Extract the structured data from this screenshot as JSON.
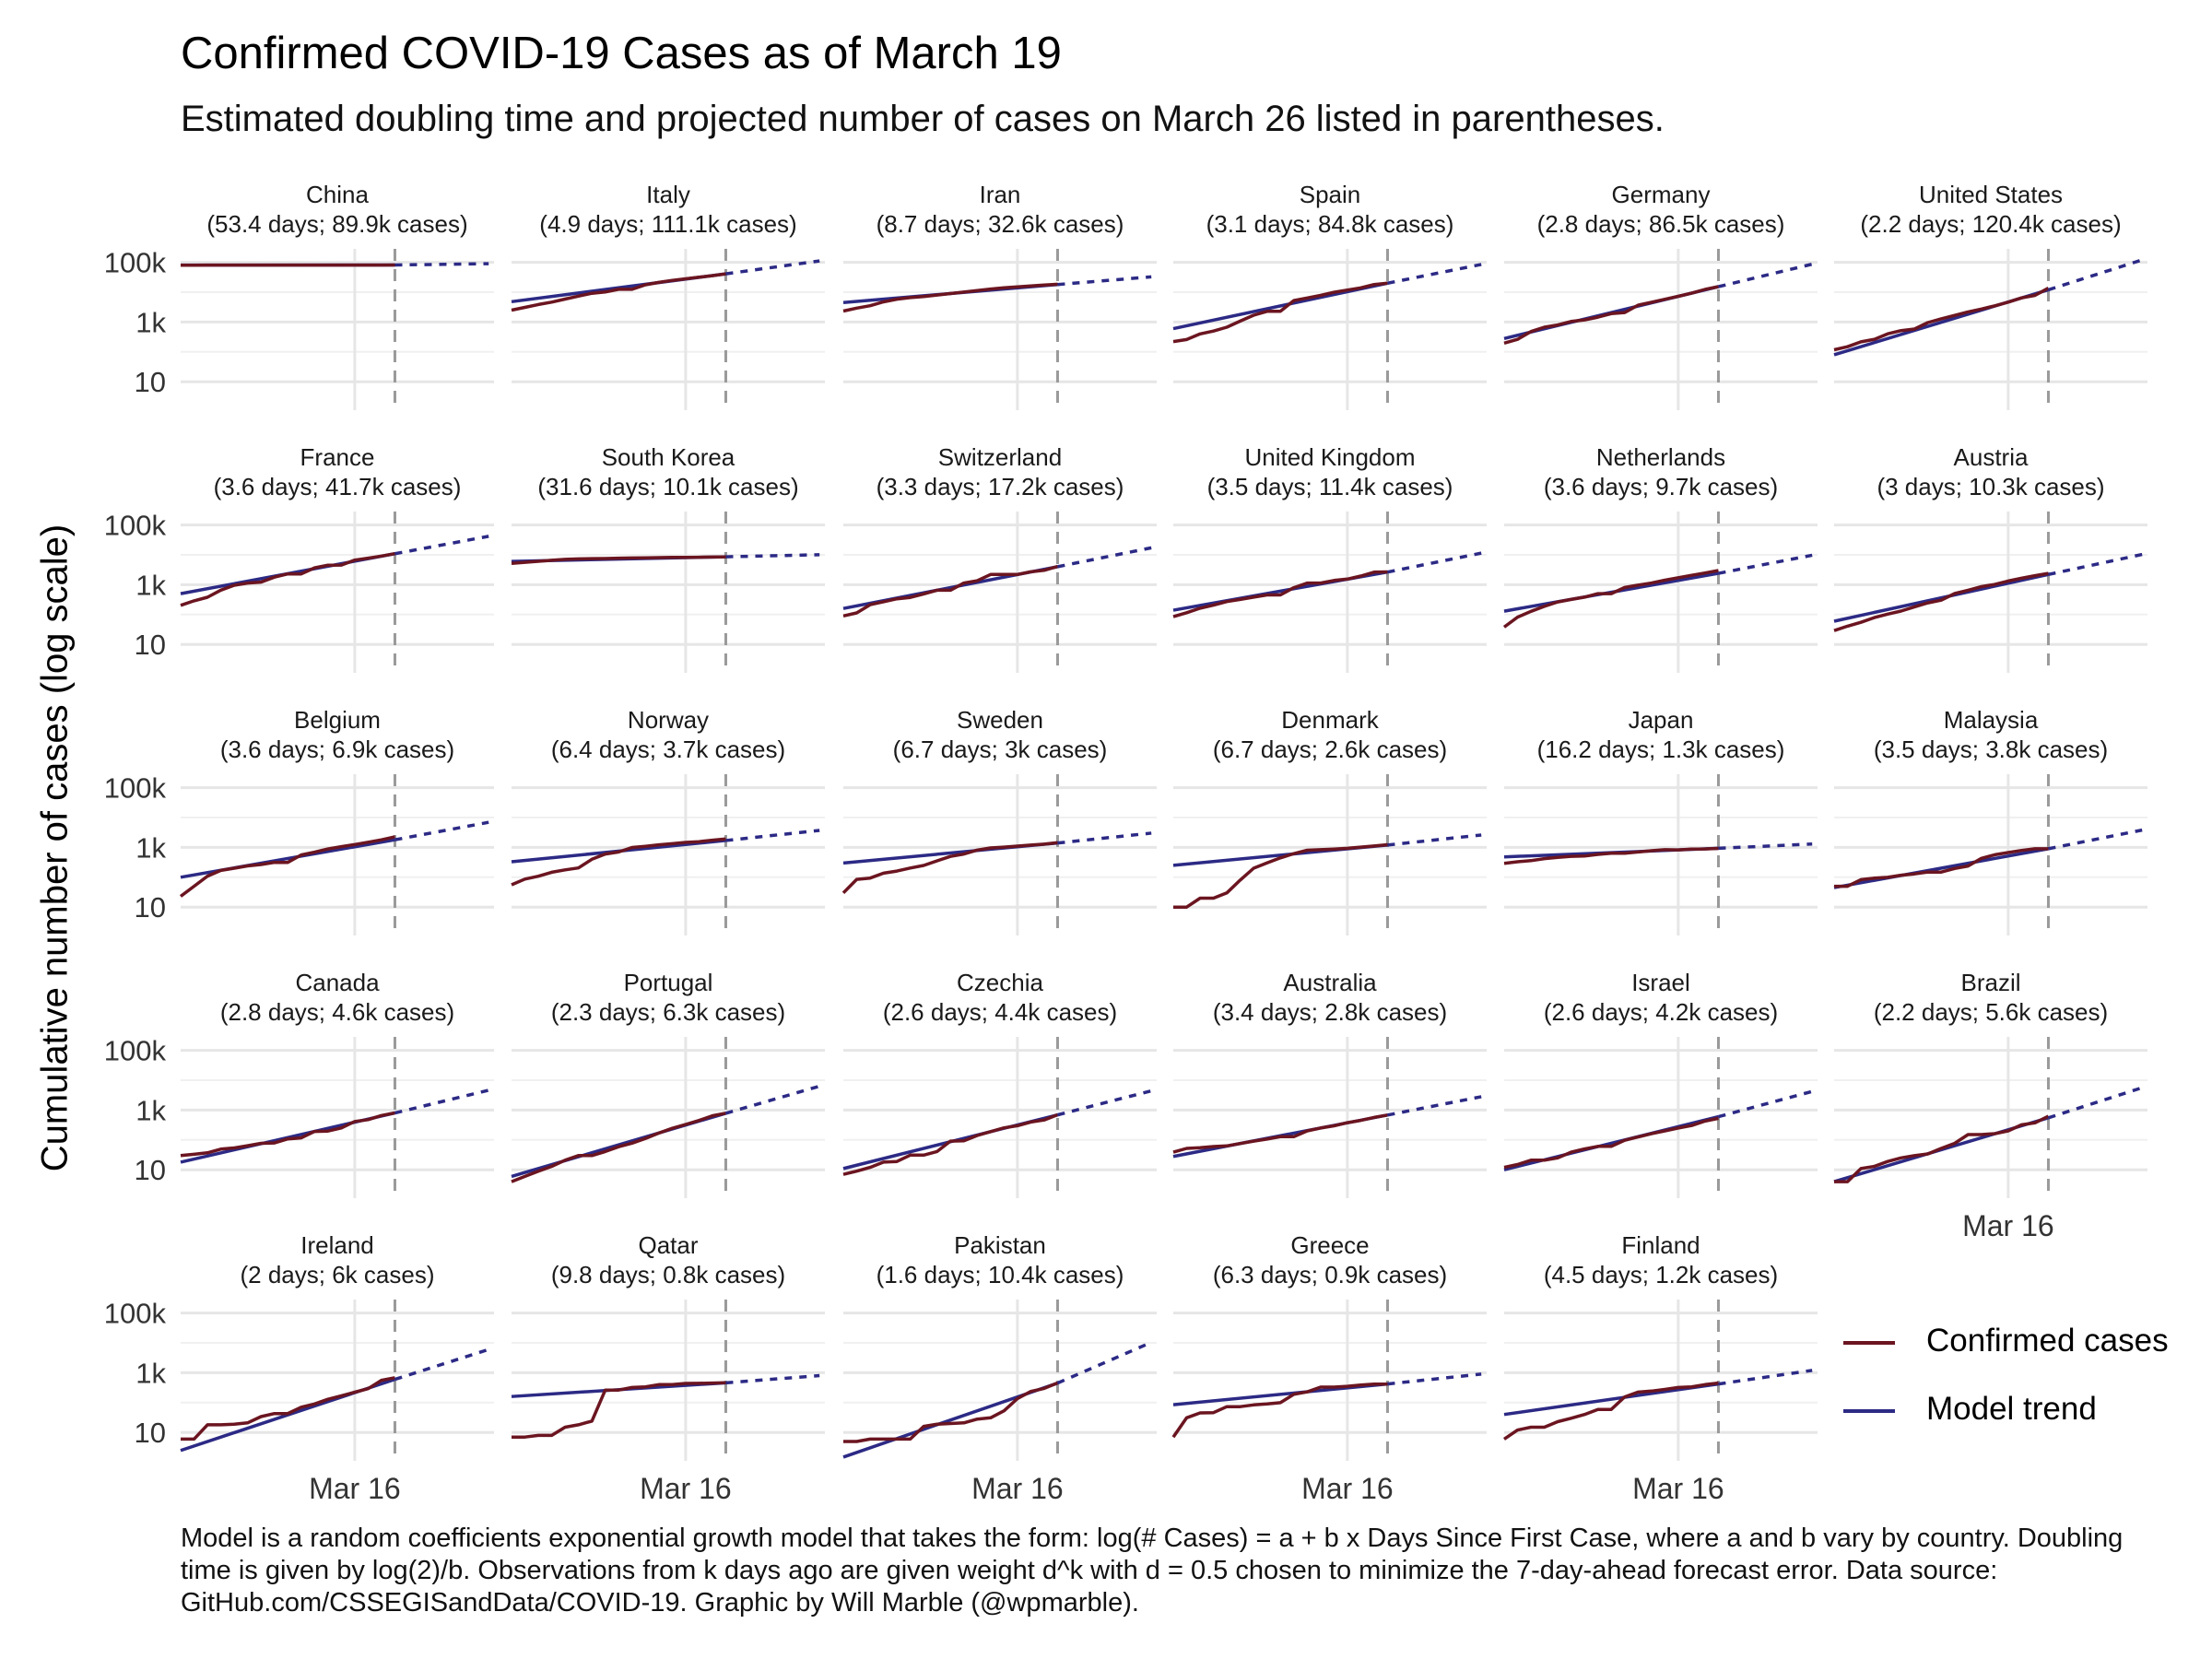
{
  "title": "Confirmed COVID-19 Cases as of March 19",
  "subtitle": "Estimated doubling time and projected number of cases on March 26 listed in parentheses.",
  "caption": "Model is a random coefficients exponential growth model that takes the form: log(# Cases) = a + b x Days Since First Case, where a and b vary by country. Doubling time is given by log(2)/b. Observations from k days ago are given weight d^k with d = 0.5 chosen to minimize the 7-day-ahead forecast error. Data source: GitHub.com/CSSEGISandData/COVID-19. Graphic by Will Marble (@wpmarble).",
  "colors": {
    "confirmed": "#6b1520",
    "trend": "#2c2a85",
    "dashed_line": "#9a9a9a",
    "grid": "#e6e6e6"
  },
  "chart_data": {
    "type": "line",
    "y_scale": "log10",
    "ylabel": "Cumulative number of cases (log scale)",
    "y_ticks": [
      {
        "value": 10,
        "label": "10"
      },
      {
        "value": 1000,
        "label": "1k"
      },
      {
        "value": 100000,
        "label": "100k"
      }
    ],
    "x_tick": {
      "date": "2020-03-16",
      "label": "Mar 16"
    },
    "observed_dates": [
      "2020-03-03",
      "2020-03-04",
      "2020-03-05",
      "2020-03-06",
      "2020-03-07",
      "2020-03-08",
      "2020-03-09",
      "2020-03-10",
      "2020-03-11",
      "2020-03-12",
      "2020-03-13",
      "2020-03-14",
      "2020-03-15",
      "2020-03-16",
      "2020-03-17",
      "2020-03-18",
      "2020-03-19"
    ],
    "last_observed": "2020-03-19",
    "projection_date": "2020-03-26",
    "legend": [
      {
        "name": "Confirmed cases",
        "color": "#6b1520"
      },
      {
        "name": "Model trend",
        "color": "#2c2a85"
      }
    ],
    "panels": [
      {
        "country": "China",
        "subtitle": "(53.4 days; 89.9k cases)",
        "confirmed": [
          80270,
          80409,
          80552,
          80651,
          80695,
          80735,
          80754,
          80778,
          80793,
          80813,
          80824,
          80844,
          80860,
          80881,
          80894,
          80928,
          81156
        ],
        "trend_start": 80300,
        "trend_mid": 81200,
        "projection": 89900
      },
      {
        "country": "Italy",
        "subtitle": "(4.9 days; 111.1k cases)",
        "confirmed": [
          2502,
          3089,
          3858,
          4636,
          5883,
          7375,
          9172,
          10149,
          12462,
          12462,
          17660,
          21157,
          24747,
          27980,
          31506,
          35713,
          41035
        ],
        "trend_start": 4800,
        "trend_mid": 41000,
        "projection": 111100
      },
      {
        "country": "Iran",
        "subtitle": "(8.7 days; 32.6k cases)",
        "confirmed": [
          2336,
          2922,
          3513,
          4747,
          5823,
          6566,
          7161,
          8042,
          9000,
          10075,
          11364,
          12729,
          13938,
          14991,
          16169,
          17361,
          18407
        ],
        "trend_start": 4500,
        "trend_mid": 18000,
        "projection": 32600
      },
      {
        "country": "Spain",
        "subtitle": "(3.1 days; 84.8k cases)",
        "confirmed": [
          222,
          259,
          400,
          500,
          673,
          1073,
          1695,
          2277,
          2277,
          5232,
          6391,
          7798,
          9942,
          11748,
          13910,
          17963,
          19980
        ],
        "trend_start": 600,
        "trend_mid": 20000,
        "projection": 84800
      },
      {
        "country": "Germany",
        "subtitle": "(2.8 days; 86.5k cases)",
        "confirmed": [
          196,
          262,
          482,
          670,
          799,
          1040,
          1176,
          1457,
          1908,
          2078,
          3675,
          4585,
          5795,
          7272,
          9257,
          12327,
          15320
        ],
        "trend_start": 280,
        "trend_mid": 15300,
        "projection": 86500
      },
      {
        "country": "United States",
        "subtitle": "(2.2 days; 120.4k cases)",
        "confirmed": [
          118,
          149,
          217,
          262,
          402,
          518,
          583,
          959,
          1281,
          1663,
          2179,
          2727,
          3499,
          4632,
          6421,
          7786,
          13680
        ],
        "trend_start": 80,
        "trend_mid": 12000,
        "projection": 120400
      },
      {
        "country": "France",
        "subtitle": "(3.6 days; 41.7k cases)",
        "confirmed": [
          204,
          288,
          380,
          656,
          959,
          1136,
          1219,
          1794,
          2293,
          2293,
          3681,
          4496,
          4532,
          6683,
          7715,
          9124,
          10970
        ],
        "trend_start": 500,
        "trend_mid": 10900,
        "projection": 41700
      },
      {
        "country": "South Korea",
        "subtitle": "(31.6 days; 10.1k cases)",
        "confirmed": [
          5186,
          5621,
          6088,
          6593,
          7041,
          7314,
          7478,
          7513,
          7755,
          7869,
          7979,
          8086,
          8162,
          8236,
          8320,
          8413,
          8565
        ],
        "trend_start": 6000,
        "trend_mid": 8600,
        "projection": 10100
      },
      {
        "country": "Switzerland",
        "subtitle": "(3.3 days; 17.2k cases)",
        "confirmed": [
          90,
          114,
          214,
          268,
          337,
          374,
          491,
          652,
          652,
          1139,
          1359,
          2200,
          2200,
          2200,
          2700,
          3028,
          4075
        ],
        "trend_start": 160,
        "trend_mid": 4000,
        "projection": 17200
      },
      {
        "country": "United Kingdom",
        "subtitle": "(3.5 days; 11.4k cases)",
        "confirmed": [
          85,
          115,
          163,
          206,
          273,
          321,
          382,
          456,
          456,
          798,
          1140,
          1140,
          1391,
          1543,
          1950,
          2626,
          2689
        ],
        "trend_start": 140,
        "trend_mid": 2650,
        "projection": 11400
      },
      {
        "country": "Netherlands",
        "subtitle": "(3.6 days; 9.7k cases)",
        "confirmed": [
          38,
          82,
          128,
          188,
          265,
          321,
          382,
          503,
          503,
          806,
          962,
          1138,
          1416,
          1711,
          2058,
          2467,
          2994
        ],
        "trend_start": 130,
        "trend_mid": 2400,
        "projection": 9700
      },
      {
        "country": "Austria",
        "subtitle": "(3 days; 10.3k cases)",
        "confirmed": [
          29,
          41,
          55,
          79,
          104,
          131,
          182,
          246,
          302,
          504,
          655,
          860,
          1018,
          1332,
          1646,
          2013,
          2388
        ],
        "trend_start": 60,
        "trend_mid": 2200,
        "projection": 10300
      },
      {
        "country": "Belgium",
        "subtitle": "(3.6 days; 6.9k cases)",
        "confirmed": [
          23,
          50,
          109,
          169,
          200,
          239,
          267,
          314,
          314,
          559,
          689,
          886,
          1058,
          1243,
          1486,
          1795,
          2257
        ],
        "trend_start": 100,
        "trend_mid": 1800,
        "projection": 6900
      },
      {
        "country": "Norway",
        "subtitle": "(6.4 days; 3.7k cases)",
        "confirmed": [
          56,
          87,
          108,
          147,
          176,
          205,
          400,
          598,
          702,
          996,
          1090,
          1221,
          1333,
          1463,
          1550,
          1746,
          1914
        ],
        "trend_start": 330,
        "trend_mid": 1700,
        "projection": 3700
      },
      {
        "country": "Sweden",
        "subtitle": "(6.7 days; 3k cases)",
        "confirmed": [
          30,
          85,
          94,
          137,
          161,
          203,
          248,
          355,
          500,
          599,
          814,
          961,
          1022,
          1103,
          1190,
          1279,
          1439
        ],
        "trend_start": 300,
        "trend_mid": 1400,
        "projection": 3000
      },
      {
        "country": "Denmark",
        "subtitle": "(6.7 days; 2.6k cases)",
        "confirmed": [
          10,
          10,
          20,
          20,
          30,
          80,
          200,
          300,
          444,
          617,
          804,
          836,
          875,
          933,
          1025,
          1116,
          1225
        ],
        "trend_start": 250,
        "trend_mid": 1200,
        "projection": 2600
      },
      {
        "country": "Japan",
        "subtitle": "(16.2 days; 1.3k cases)",
        "confirmed": [
          293,
          331,
          360,
          420,
          461,
          502,
          511,
          581,
          639,
          639,
          701,
          773,
          839,
          825,
          878,
          889,
          924
        ],
        "trend_start": 480,
        "trend_mid": 930,
        "projection": 1300
      },
      {
        "country": "Malaysia",
        "subtitle": "(3.5 days; 3.8k cases)",
        "confirmed": [
          50,
          50,
          83,
          93,
          99,
          117,
          129,
          149,
          149,
          197,
          238,
          428,
          566,
          673,
          790,
          900,
          900
        ],
        "trend_start": 45,
        "trend_mid": 900,
        "projection": 3800
      },
      {
        "country": "Canada",
        "subtitle": "(2.8 days; 4.6k cases)",
        "confirmed": [
          30,
          33,
          37,
          49,
          54,
          64,
          77,
          79,
          108,
          117,
          193,
          198,
          252,
          415,
          478,
          657,
          800
        ],
        "trend_start": 18,
        "trend_mid": 800,
        "projection": 4600
      },
      {
        "country": "Portugal",
        "subtitle": "(2.3 days; 6.3k cases)",
        "confirmed": [
          4,
          6,
          9,
          13,
          21,
          30,
          30,
          41,
          59,
          78,
          112,
          169,
          245,
          331,
          448,
          642,
          785
        ],
        "trend_start": 6,
        "trend_mid": 780,
        "projection": 6300
      },
      {
        "country": "Czechia",
        "subtitle": "(2.6 days; 4.4k cases)",
        "confirmed": [
          7,
          9,
          12,
          18,
          19,
          31,
          31,
          41,
          91,
          94,
          141,
          189,
          253,
          298,
          396,
          464,
          694
        ],
        "trend_start": 11,
        "trend_mid": 690,
        "projection": 4400
      },
      {
        "country": "Australia",
        "subtitle": "(3.4 days; 2.8k cases)",
        "confirmed": [
          39,
          52,
          55,
          60,
          63,
          76,
          91,
          107,
          128,
          128,
          200,
          250,
          297,
          377,
          452,
          568,
          681
        ],
        "trend_start": 28,
        "trend_mid": 680,
        "projection": 2800
      },
      {
        "country": "Israel",
        "subtitle": "(2.6 days; 4.2k cases)",
        "confirmed": [
          12,
          15,
          21,
          21,
          25,
          39,
          50,
          61,
          61,
          97,
          126,
          161,
          200,
          250,
          304,
          427,
          529
        ],
        "trend_start": 10,
        "trend_mid": 600,
        "projection": 4200
      },
      {
        "country": "Brazil",
        "subtitle": "(2.2 days; 5.6k cases)",
        "confirmed": [
          4,
          4,
          11,
          13,
          19,
          25,
          30,
          34,
          52,
          77,
          151,
          151,
          162,
          200,
          321,
          372,
          621
        ],
        "trend_start": 4,
        "trend_mid": 550,
        "projection": 5600
      },
      {
        "country": "Ireland",
        "subtitle": "(2 days; 6k cases)",
        "confirmed": [
          6,
          6,
          18,
          18,
          19,
          21,
          34,
          43,
          43,
          70,
          90,
          129,
          169,
          223,
          292,
          557,
          683
        ],
        "trend_start": 2.5,
        "trend_mid": 600,
        "projection": 6000
      },
      {
        "country": "Qatar",
        "subtitle": "(9.8 days; 0.8k cases)",
        "confirmed": [
          7,
          7,
          8,
          8,
          15,
          18,
          24,
          262,
          262,
          320,
          337,
          401,
          401,
          439,
          442,
          452,
          460
        ],
        "trend_start": 160,
        "trend_mid": 460,
        "projection": 800
      },
      {
        "country": "Pakistan",
        "subtitle": "(1.6 days; 10.4k cases)",
        "confirmed": [
          5,
          5,
          6,
          6,
          6,
          6,
          16,
          19,
          20,
          21,
          28,
          31,
          53,
          136,
          236,
          299,
          454
        ],
        "trend_start": 1.5,
        "trend_mid": 450,
        "projection": 10400
      },
      {
        "country": "Greece",
        "subtitle": "(6.3 days; 0.9k cases)",
        "confirmed": [
          7,
          31,
          45,
          46,
          73,
          73,
          84,
          90,
          99,
          190,
          228,
          331,
          331,
          352,
          387,
          418,
          418
        ],
        "trend_start": 85,
        "trend_mid": 420,
        "projection": 900
      },
      {
        "country": "Finland",
        "subtitle": "(4.5 days; 1.2k cases)",
        "confirmed": [
          6,
          12,
          15,
          15,
          23,
          30,
          40,
          59,
          59,
          155,
          225,
          244,
          277,
          321,
          336,
          400,
          450
        ],
        "trend_start": 40,
        "trend_mid": 420,
        "projection": 1200
      }
    ]
  }
}
